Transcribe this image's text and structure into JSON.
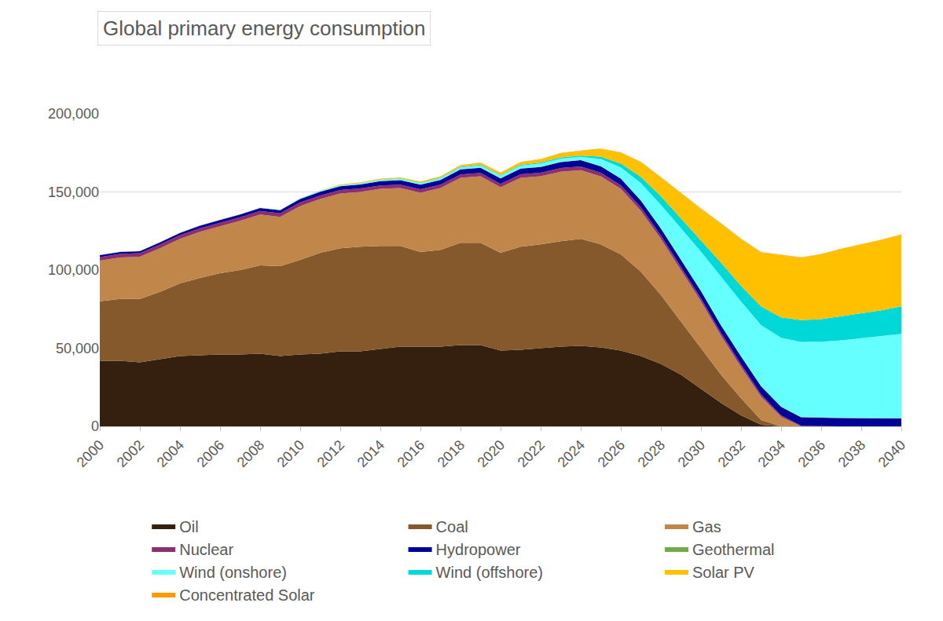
{
  "chart_data": {
    "type": "area",
    "stacked": true,
    "title": "Global primary energy consumption",
    "x": [
      2000,
      2001,
      2002,
      2003,
      2004,
      2005,
      2006,
      2007,
      2008,
      2009,
      2010,
      2011,
      2012,
      2013,
      2014,
      2015,
      2016,
      2017,
      2018,
      2019,
      2020,
      2021,
      2022,
      2023,
      2024,
      2025,
      2026,
      2027,
      2028,
      2029,
      2030,
      2031,
      2032,
      2033,
      2034,
      2035,
      2036,
      2037,
      2038,
      2039,
      2040
    ],
    "xlim": [
      2000,
      2040
    ],
    "xticks": [
      2000,
      2002,
      2004,
      2006,
      2008,
      2010,
      2012,
      2014,
      2016,
      2018,
      2020,
      2022,
      2024,
      2026,
      2028,
      2030,
      2032,
      2034,
      2036,
      2038,
      2040
    ],
    "ylim": [
      0,
      200000
    ],
    "yticks": [
      0,
      {
        "value": 50000,
        "label": "50,000"
      },
      {
        "value": 100000,
        "label": "100,000"
      },
      {
        "value": 150000,
        "label": "150,000"
      },
      {
        "value": 200000,
        "label": "200,000"
      }
    ],
    "grid": true,
    "legend": "bottom",
    "series": [
      {
        "name": "Oil",
        "color": "#35200f",
        "values": [
          42000,
          42000,
          41000,
          43000,
          45000,
          45500,
          46000,
          46000,
          46500,
          45000,
          46000,
          46500,
          48000,
          48000,
          49500,
          51000,
          51000,
          51000,
          52000,
          52000,
          48500,
          49000,
          50000,
          51000,
          51500,
          50500,
          48500,
          45000,
          40000,
          33000,
          24000,
          15000,
          7000,
          1000,
          0,
          0,
          0,
          0,
          0,
          0,
          0
        ]
      },
      {
        "name": "Coal",
        "color": "#85592c",
        "values": [
          38000,
          39500,
          40500,
          43000,
          46500,
          49500,
          52000,
          54000,
          56500,
          57500,
          60500,
          64500,
          66000,
          67000,
          66000,
          64500,
          60500,
          62000,
          65500,
          65500,
          62500,
          66000,
          66500,
          67500,
          68500,
          66000,
          61500,
          54000,
          44000,
          34000,
          26000,
          18000,
          11000,
          3000,
          0,
          0,
          0,
          0,
          0,
          0,
          0
        ]
      },
      {
        "name": "Gas",
        "color": "#c1874a",
        "values": [
          26000,
          26500,
          27000,
          28000,
          28500,
          29500,
          30000,
          31500,
          32500,
          31500,
          34500,
          34500,
          35000,
          35000,
          36500,
          37000,
          38000,
          39500,
          41500,
          42500,
          42000,
          44000,
          43500,
          44500,
          44000,
          43500,
          42000,
          39000,
          36000,
          33000,
          30000,
          25000,
          20000,
          15000,
          6000,
          0,
          0,
          0,
          0,
          0,
          0
        ]
      },
      {
        "name": "Nuclear",
        "color": "#8e2f6b",
        "values": [
          2300,
          2300,
          2300,
          2300,
          2300,
          2300,
          2300,
          2300,
          2300,
          2300,
          2300,
          2300,
          2200,
          2200,
          2200,
          2200,
          2200,
          2200,
          2200,
          2200,
          2200,
          2300,
          2300,
          2300,
          2300,
          2300,
          2300,
          2200,
          2100,
          2000,
          1900,
          1800,
          1700,
          1500,
          1000,
          300,
          0,
          0,
          0,
          0,
          0
        ]
      },
      {
        "name": "Hydropower",
        "color": "#000099",
        "values": [
          1200,
          1250,
          1300,
          1400,
          1500,
          1600,
          1700,
          1800,
          1900,
          2000,
          2200,
          2300,
          2500,
          2600,
          2700,
          2800,
          2900,
          3000,
          3200,
          3300,
          3500,
          3600,
          3700,
          3850,
          4000,
          4100,
          4200,
          4300,
          4500,
          4600,
          4700,
          4800,
          5000,
          5100,
          5500,
          5500,
          5400,
          5300,
          5200,
          5100,
          5000
        ]
      },
      {
        "name": "Geothermal",
        "color": "#70ad47",
        "values": [
          100,
          100,
          100,
          100,
          100,
          100,
          100,
          100,
          100,
          100,
          150,
          150,
          150,
          150,
          150,
          150,
          150,
          150,
          200,
          200,
          200,
          200,
          200,
          200,
          200,
          200,
          200,
          200,
          200,
          200,
          200,
          200,
          200,
          200,
          200,
          200,
          200,
          200,
          200,
          200,
          200
        ]
      },
      {
        "name": "Wind (onshore)",
        "color": "#66ffff",
        "values": [
          0,
          0,
          0,
          0,
          0,
          0,
          0,
          0,
          100,
          200,
          300,
          400,
          500,
          600,
          700,
          800,
          900,
          1000,
          1100,
          1300,
          1500,
          1700,
          2000,
          2000,
          2000,
          4500,
          7000,
          11000,
          15000,
          20000,
          25000,
          31000,
          35000,
          39000,
          44000,
          48000,
          48500,
          49500,
          51000,
          52500,
          54000
        ]
      },
      {
        "name": "Wind (offshore)",
        "color": "#00d8d8",
        "values": [
          0,
          0,
          0,
          0,
          0,
          0,
          0,
          0,
          0,
          0,
          50,
          50,
          100,
          100,
          150,
          200,
          250,
          300,
          350,
          400,
          450,
          500,
          600,
          700,
          800,
          1500,
          2500,
          4000,
          5500,
          6500,
          7500,
          9000,
          10000,
          12000,
          13000,
          14000,
          14500,
          15500,
          16000,
          16500,
          17500
        ]
      },
      {
        "name": "Solar PV",
        "color": "#ffc000",
        "values": [
          0,
          0,
          0,
          0,
          0,
          0,
          0,
          0,
          0,
          0,
          100,
          200,
          300,
          400,
          500,
          600,
          700,
          800,
          1000,
          1300,
          1500,
          1800,
          2200,
          2800,
          3000,
          5000,
          7000,
          9500,
          12000,
          16000,
          20000,
          25000,
          30000,
          34500,
          40000,
          40000,
          41500,
          43000,
          44000,
          45000,
          46000
        ]
      },
      {
        "name": "Concentrated Solar",
        "color": "#ff9900",
        "values": [
          0,
          0,
          0,
          0,
          0,
          0,
          0,
          0,
          0,
          0,
          0,
          0,
          50,
          50,
          100,
          100,
          100,
          100,
          100,
          100,
          100,
          100,
          150,
          150,
          150,
          150,
          150,
          200,
          200,
          200,
          200,
          200,
          200,
          200,
          200,
          200,
          200,
          200,
          200,
          200,
          200
        ]
      }
    ]
  }
}
